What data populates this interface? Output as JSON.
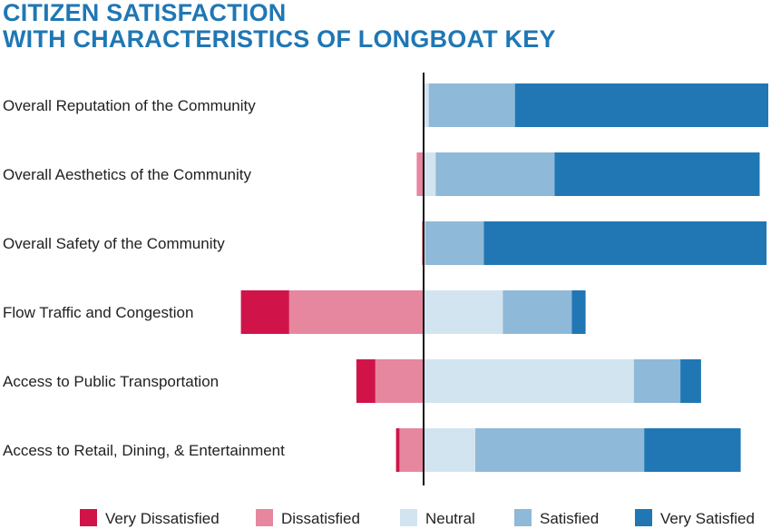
{
  "chart_data": {
    "type": "bar",
    "orientation": "horizontal",
    "stacked": "diverging",
    "title_lines": [
      "CITIZEN SATISFACTION",
      "WITH CHARACTERISTICS OF LONGBOAT KEY"
    ],
    "categories": [
      "Overall Reputation of the Community",
      "Overall Aesthetics of the Community",
      "Overall Safety of the Community",
      "Flow Traffic and Congestion",
      "Access to Public Transportation",
      "Access to Retail, Dining, & Entertainment"
    ],
    "series": [
      {
        "name": "Very Dissatisfied",
        "color": "#d0144a",
        "side": "negative",
        "values": [
          0,
          0,
          0,
          14,
          5.5,
          1
        ]
      },
      {
        "name": "Dissatisfied",
        "color": "#e6879f",
        "side": "negative",
        "values": [
          0,
          2,
          0.5,
          39,
          14,
          7
        ]
      },
      {
        "name": "Neutral",
        "color": "#d2e4f0",
        "side": "positive",
        "values": [
          1.5,
          3.5,
          0.5,
          23,
          61,
          15
        ]
      },
      {
        "name": "Satisfied",
        "color": "#8fb9d8",
        "side": "positive",
        "values": [
          25,
          34.5,
          17,
          20,
          13.5,
          49
        ]
      },
      {
        "name": "Very Satisfied",
        "color": "#2077b4",
        "side": "positive",
        "values": [
          73.5,
          59.5,
          82,
          4,
          6,
          28
        ]
      }
    ],
    "unit": "percent of respondents",
    "legend_position": "bottom",
    "grid": false
  }
}
